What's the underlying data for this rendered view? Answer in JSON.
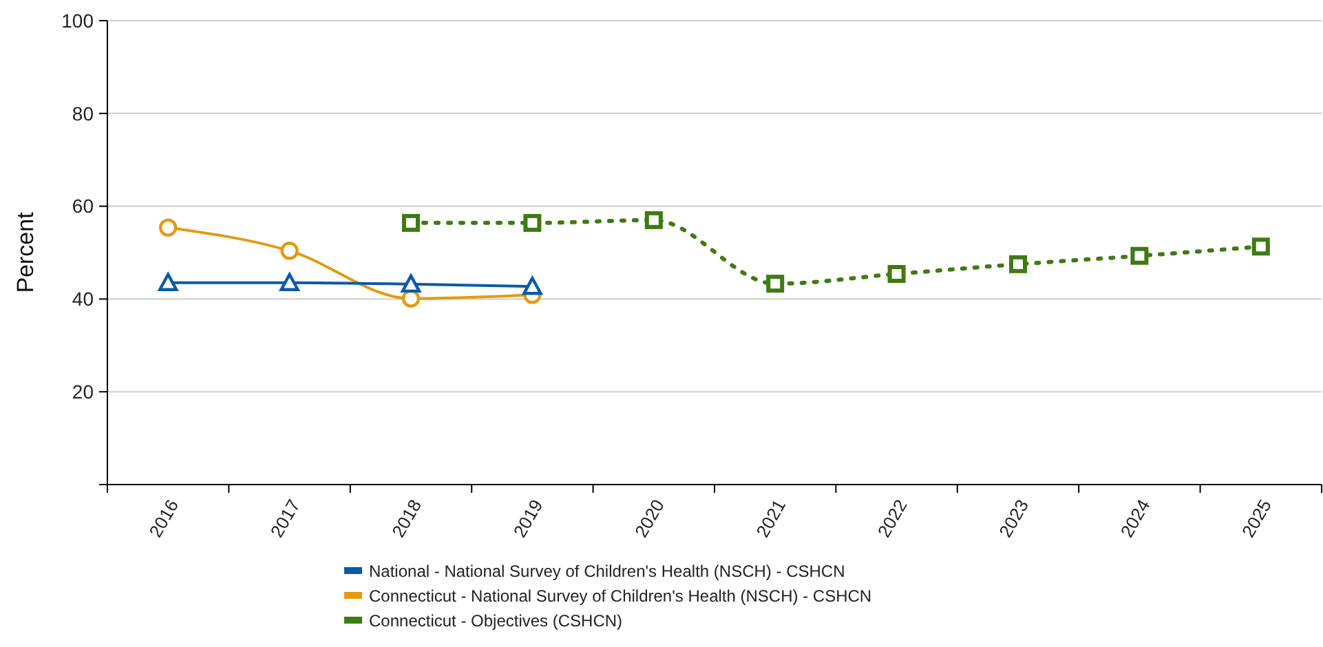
{
  "chart_data": {
    "type": "line",
    "ylabel": "Percent",
    "categories": [
      "2016",
      "2017",
      "2018",
      "2019",
      "2020",
      "2021",
      "2022",
      "2023",
      "2024",
      "2025"
    ],
    "series": [
      {
        "name": "National - National Survey of Children's Health (NSCH) - CSHCN",
        "color": "#0b5aa6",
        "marker": "triangle",
        "line_style": "solid",
        "values": [
          43.5,
          43.5,
          43.2,
          42.7,
          null,
          null,
          null,
          null,
          null,
          null
        ]
      },
      {
        "name": "Connecticut - National Survey of Children's Health (NSCH) - CSHCN",
        "color": "#e39a12",
        "marker": "circle",
        "line_style": "solid",
        "values": [
          55.4,
          50.4,
          40.1,
          40.9,
          null,
          null,
          null,
          null,
          null,
          null
        ]
      },
      {
        "name": "Connecticut - Objectives (CSHCN)",
        "color": "#3f7a12",
        "marker": "square",
        "line_style": "dotted",
        "values": [
          null,
          null,
          56.4,
          56.4,
          57,
          43.3,
          45.4,
          47.5,
          49.3,
          51.3
        ]
      }
    ],
    "ylim": [
      0,
      100
    ],
    "yticks": [
      {
        "value": 0,
        "label": null
      },
      20,
      40,
      60,
      80,
      100
    ],
    "grid": "y",
    "legend": "bottom"
  }
}
